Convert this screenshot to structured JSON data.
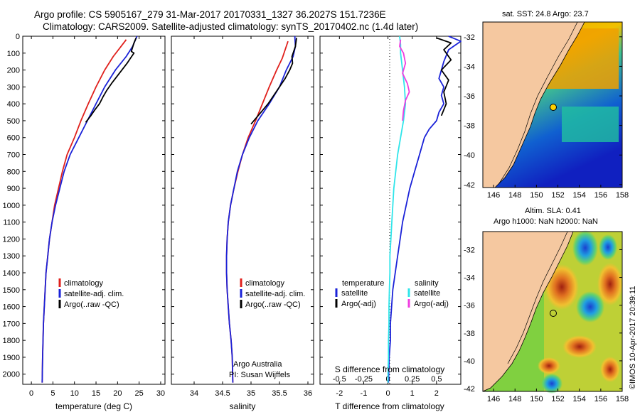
{
  "header": {
    "line1": "Argo profile: CS 5905167_279 31-Mar-2017 20170331_1327 36.2027S 151.7236E",
    "line2": "Climatology: CARS2009. Satellite-adjusted climatology: synTS_20170402.nc (1.4d later)"
  },
  "map_top": {
    "title": "sat. SST: 24.8 Argo: 23.7"
  },
  "map_bottom": {
    "title1": "Altim. SLA: 0.41",
    "title2": "Argo h1000: NaN h2000: NaN"
  },
  "credit": "©IMOS 10-Apr-2017 20:39:11",
  "info": {
    "line1": "Argo Australia",
    "line2": "PI: Susan Wijffels"
  },
  "legend_left": [
    "climatology",
    "satellite-adj. clim.",
    "Argo(..raw -QC)"
  ],
  "legend_diff": {
    "temp_title": "temperature",
    "sal_title": "salinity",
    "entries": [
      "satellite",
      "Argo(-adj)",
      "satellite",
      "Argo(-adj)"
    ]
  },
  "colors": {
    "climatology": "#e0201c",
    "satellite": "#1a22d8",
    "argo": "#000000",
    "sal_sat": "#2fe5ea",
    "sal_argo": "#f03ce0",
    "land": "#f5c8a0"
  },
  "chart_data": [
    {
      "type": "line",
      "xlabel": "temperature (deg C)",
      "xlim": [
        -2,
        31
      ],
      "ylim": [
        2060,
        0
      ],
      "xticks": [
        0,
        5,
        10,
        15,
        20,
        25,
        30
      ],
      "yticks": [
        0,
        100,
        200,
        300,
        400,
        500,
        600,
        700,
        800,
        900,
        1000,
        1100,
        1200,
        1300,
        1400,
        1500,
        1600,
        1700,
        1800,
        1900,
        2000
      ],
      "series": [
        {
          "name": "climatology",
          "color": "#e0201c",
          "x": [
            22.0,
            20.5,
            19.0,
            17.0,
            15.0,
            13.2,
            11.5,
            10.0,
            8.3,
            7.2,
            6.3,
            5.4,
            4.8,
            4.2,
            3.8,
            3.4,
            3.2,
            3.0,
            2.8,
            2.7,
            2.6,
            2.5
          ],
          "y": [
            20,
            70,
            120,
            200,
            300,
            400,
            500,
            600,
            700,
            800,
            900,
            1000,
            1100,
            1200,
            1300,
            1400,
            1500,
            1600,
            1700,
            1800,
            1900,
            2050
          ]
        },
        {
          "name": "satellite-adj. clim.",
          "color": "#1a22d8",
          "x": [
            24.5,
            23.5,
            22.0,
            19.5,
            17.0,
            15.0,
            13.0,
            11.0,
            9.0,
            7.6,
            6.6,
            5.6,
            4.8,
            4.2,
            3.8,
            3.4,
            3.2,
            3.0,
            2.8,
            2.7,
            2.6,
            2.5
          ],
          "y": [
            0,
            60,
            120,
            200,
            300,
            400,
            500,
            600,
            700,
            800,
            900,
            1000,
            1100,
            1200,
            1300,
            1400,
            1500,
            1600,
            1700,
            1800,
            1900,
            2050
          ]
        },
        {
          "name": "Argo(..raw -QC)",
          "color": "#000000",
          "x": [
            24.3,
            23.8,
            23.2,
            23.8,
            23.0,
            22.2,
            21.0,
            19.8,
            18.6,
            17.5,
            16.6,
            15.8,
            14.6,
            13.8,
            12.6
          ],
          "y": [
            10,
            40,
            90,
            100,
            130,
            160,
            200,
            240,
            280,
            320,
            360,
            400,
            440,
            470,
            510
          ]
        }
      ]
    },
    {
      "type": "line",
      "xlabel": "salinity",
      "xlim": [
        33.6,
        36.1
      ],
      "ylim": [
        2060,
        0
      ],
      "xticks": [
        34,
        34.5,
        35,
        35.5,
        36
      ],
      "yticks": [
        0,
        100,
        200,
        300,
        400,
        500,
        600,
        700,
        800,
        900,
        1000,
        1100,
        1200,
        1300,
        1400,
        1500,
        1600,
        1700,
        1800,
        1900,
        2000
      ],
      "series": [
        {
          "name": "climatology",
          "color": "#e0201c",
          "x": [
            35.65,
            35.6,
            35.55,
            35.45,
            35.32,
            35.2,
            35.08,
            34.95,
            34.85,
            34.77,
            34.7,
            34.64,
            34.6,
            34.58,
            34.57,
            34.57,
            34.58,
            34.6,
            34.62,
            34.65,
            34.67,
            34.68
          ],
          "y": [
            30,
            80,
            130,
            200,
            300,
            400,
            500,
            600,
            700,
            800,
            900,
            1000,
            1100,
            1200,
            1300,
            1400,
            1500,
            1600,
            1700,
            1800,
            1900,
            2050
          ]
        },
        {
          "name": "satellite-adj. clim.",
          "color": "#1a22d8",
          "x": [
            35.77,
            35.78,
            35.74,
            35.62,
            35.5,
            35.32,
            35.12,
            34.97,
            34.85,
            34.76,
            34.7,
            34.64,
            34.6,
            34.58,
            34.57,
            34.57,
            34.58,
            34.6,
            34.62,
            34.65,
            34.67,
            34.68
          ],
          "y": [
            0,
            60,
            120,
            200,
            300,
            400,
            500,
            600,
            700,
            800,
            900,
            1000,
            1100,
            1200,
            1300,
            1400,
            1500,
            1600,
            1700,
            1800,
            1900,
            2050
          ]
        },
        {
          "name": "Argo(..raw -QC)",
          "color": "#000000",
          "x": [
            35.8,
            35.78,
            35.72,
            35.73,
            35.68,
            35.6,
            35.5,
            35.4,
            35.3,
            35.2,
            35.1,
            35.0
          ],
          "y": [
            10,
            60,
            120,
            160,
            200,
            250,
            300,
            350,
            400,
            440,
            480,
            520
          ]
        }
      ]
    },
    {
      "type": "line",
      "xlabel": "T difference from climatology",
      "xlabel_top": "S difference from climatology",
      "xlim": [
        -2.8,
        3.0
      ],
      "xlim_top": [
        -0.7,
        0.75
      ],
      "ylim": [
        2060,
        0
      ],
      "xticks": [
        -2,
        -1,
        0,
        1,
        2
      ],
      "xticks_top": [
        -0.5,
        -0.25,
        0,
        0.25,
        0.5
      ],
      "yticks": [
        0,
        100,
        200,
        300,
        400,
        500,
        600,
        700,
        800,
        900,
        1000,
        1100,
        1200,
        1300,
        1400,
        1500,
        1600,
        1700,
        1800,
        1900,
        2000
      ],
      "series": [
        {
          "name": "temperature satellite",
          "color": "#1a22d8",
          "axis": "T",
          "x": [
            2.5,
            3.0,
            2.5,
            2.3,
            2.2,
            2.1,
            2.3,
            2.2,
            2.3,
            2.1,
            2.0,
            1.7,
            1.5,
            1.3,
            1.1,
            0.9,
            0.75,
            0.6,
            0.5,
            0.4,
            0.3,
            0.2,
            0.15,
            0.1,
            0.1,
            0.05,
            0.02
          ],
          "y": [
            0,
            30,
            80,
            150,
            200,
            250,
            300,
            350,
            400,
            450,
            500,
            550,
            600,
            700,
            800,
            900,
            1000,
            1100,
            1200,
            1300,
            1400,
            1500,
            1600,
            1700,
            1800,
            1900,
            2050
          ]
        },
        {
          "name": "temperature Argo(-adj)",
          "color": "#000000",
          "axis": "T",
          "x": [
            2.0,
            2.6,
            2.3,
            2.6,
            2.2,
            2.5,
            2.3,
            2.4,
            2.2
          ],
          "y": [
            10,
            40,
            80,
            140,
            200,
            260,
            330,
            400,
            470
          ]
        },
        {
          "name": "salinity satellite",
          "color": "#2fe5ea",
          "axis": "S",
          "x": [
            0.12,
            0.13,
            0.13,
            0.14,
            0.15,
            0.16,
            0.17,
            0.18,
            0.16,
            0.13,
            0.1,
            0.08,
            0.06,
            0.05,
            0.04,
            0.03,
            0.02,
            0.02,
            0.015,
            0.01,
            0.01,
            0.005,
            0.005,
            0.0,
            0.0
          ],
          "y": [
            0,
            50,
            100,
            150,
            200,
            250,
            300,
            400,
            500,
            600,
            700,
            800,
            900,
            1000,
            1100,
            1200,
            1300,
            1400,
            1500,
            1600,
            1700,
            1800,
            1900,
            2000,
            2050
          ]
        },
        {
          "name": "salinity Argo(-adj)",
          "color": "#f03ce0",
          "axis": "S",
          "x": [
            0.13,
            0.12,
            0.16,
            0.18,
            0.15,
            0.2,
            0.22,
            0.18,
            0.16,
            0.15
          ],
          "y": [
            20,
            60,
            100,
            160,
            220,
            280,
            330,
            380,
            440,
            500
          ]
        }
      ]
    }
  ]
}
